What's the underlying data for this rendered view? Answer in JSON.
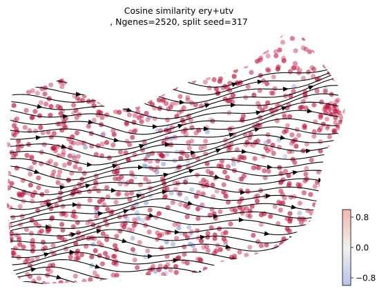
{
  "chart_data": {
    "type": "scatter",
    "title_line1": "Cosine similarity ery+utv",
    "title_line2": ", Ngenes=2520, split seed=317",
    "xlabel": "",
    "ylabel": "",
    "axes_visible": false,
    "grid": false,
    "overlay": "streamlines with arrowheads (velocity field)",
    "colormap": {
      "name": "coolwarm",
      "low_color": "#b8c3ea",
      "mid_color": "#f2f0f0",
      "high_color": "#efb6ac",
      "range": [
        -1.0,
        1.0
      ],
      "ticks": [
        0.8,
        0.0,
        -0.8
      ],
      "tick_labels": [
        "0.8",
        "0.0",
        "−0.8"
      ],
      "placement": "bottom-right"
    },
    "point_color_majority": "#c0143c",
    "point_color_minority": "#8ea0d8",
    "streamline_color": "#000000"
  }
}
